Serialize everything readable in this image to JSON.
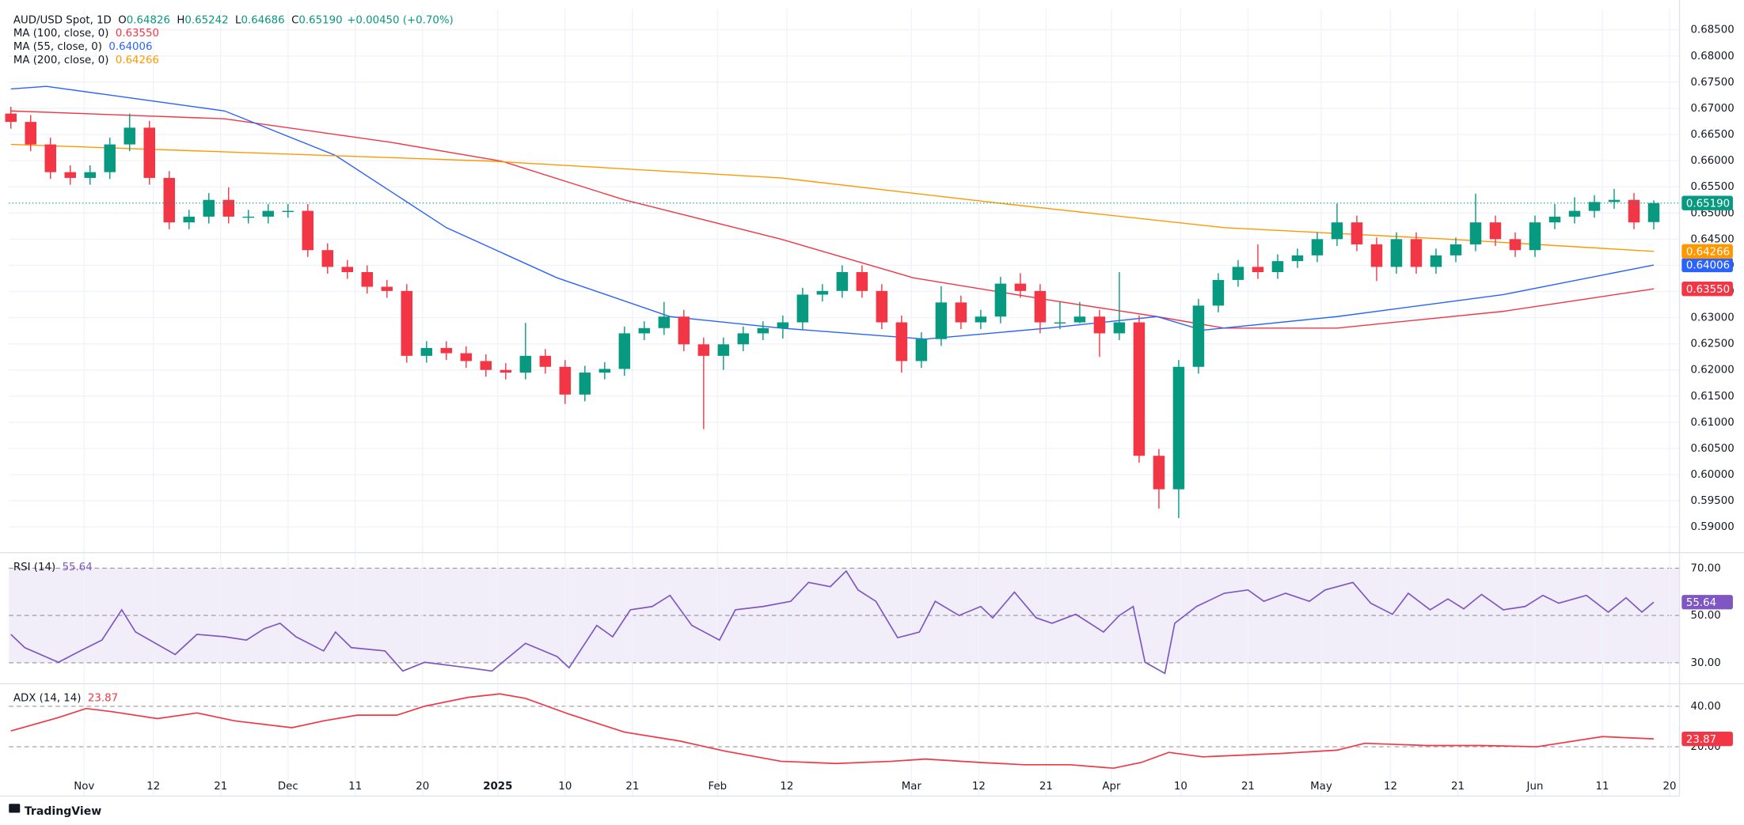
{
  "chart_data": [
    {
      "type": "candlestick",
      "title": "AUD/USD Spot, 1D",
      "header": [
        {
          "key": "O",
          "label": "0.64826"
        },
        {
          "key": "H",
          "label": "0.65242"
        },
        {
          "key": "L",
          "label": "0.64686"
        },
        {
          "key": "C",
          "label": "0.65190"
        }
      ],
      "change_label": "+0.00450 (+0.70%)",
      "up_color": "#089981",
      "down_color": "#f23645",
      "xlim": [
        -0.1,
        84.3
      ],
      "ylim": [
        0.5851,
        0.689
      ],
      "yticks": [
        {
          "value": 0.59,
          "label": "0.59000"
        },
        {
          "value": 0.595,
          "label": "0.59500"
        },
        {
          "value": 0.6,
          "label": "0.60000"
        },
        {
          "value": 0.605,
          "label": "0.60500"
        },
        {
          "value": 0.61,
          "label": "0.61000"
        },
        {
          "value": 0.615,
          "label": "0.61500"
        },
        {
          "value": 0.62,
          "label": "0.62000"
        },
        {
          "value": 0.625,
          "label": "0.62500"
        },
        {
          "value": 0.63,
          "label": "0.63000"
        },
        {
          "value": 0.635,
          "label": "0.63500"
        },
        {
          "value": 0.64,
          "label": "0.64000"
        },
        {
          "value": 0.645,
          "label": "0.64500"
        },
        {
          "value": 0.65,
          "label": "0.65000"
        },
        {
          "value": 0.655,
          "label": "0.65500"
        },
        {
          "value": 0.66,
          "label": "0.66000"
        },
        {
          "value": 0.665,
          "label": "0.66500"
        },
        {
          "value": 0.67,
          "label": "0.67000"
        },
        {
          "value": 0.675,
          "label": "0.67500"
        },
        {
          "value": 0.68,
          "label": "0.68000"
        },
        {
          "value": 0.685,
          "label": "0.68500"
        }
      ],
      "last_label": "0.65190",
      "candles": [
        [
          0.669,
          0.6703,
          0.6661,
          0.6674
        ],
        [
          0.6674,
          0.6687,
          0.6618,
          0.6631
        ],
        [
          0.6631,
          0.6644,
          0.6565,
          0.6578
        ],
        [
          0.6578,
          0.6591,
          0.6554,
          0.6567
        ],
        [
          0.6567,
          0.6591,
          0.6554,
          0.6578
        ],
        [
          0.6578,
          0.6644,
          0.6565,
          0.6631
        ],
        [
          0.6631,
          0.669,
          0.6618,
          0.6663
        ],
        [
          0.6663,
          0.6676,
          0.6554,
          0.6567
        ],
        [
          0.6567,
          0.658,
          0.6469,
          0.6482
        ],
        [
          0.6482,
          0.6506,
          0.6469,
          0.6493
        ],
        [
          0.6493,
          0.6538,
          0.648,
          0.6525
        ],
        [
          0.6525,
          0.6549,
          0.648,
          0.6493
        ],
        [
          0.6493,
          0.6506,
          0.648,
          0.6493
        ],
        [
          0.6493,
          0.6517,
          0.648,
          0.6504
        ],
        [
          0.6504,
          0.6517,
          0.6491,
          0.6504
        ],
        [
          0.6504,
          0.6517,
          0.6416,
          0.6429
        ],
        [
          0.6429,
          0.6442,
          0.6384,
          0.6397
        ],
        [
          0.6397,
          0.641,
          0.6374,
          0.6387
        ],
        [
          0.6387,
          0.64,
          0.6346,
          0.6359
        ],
        [
          0.6359,
          0.6372,
          0.6338,
          0.6351
        ],
        [
          0.6351,
          0.6364,
          0.6214,
          0.6227
        ],
        [
          0.6227,
          0.6255,
          0.6214,
          0.6242
        ],
        [
          0.6242,
          0.6255,
          0.6219,
          0.6232
        ],
        [
          0.6232,
          0.6245,
          0.6204,
          0.6217
        ],
        [
          0.6217,
          0.623,
          0.6187,
          0.62
        ],
        [
          0.62,
          0.6213,
          0.6182,
          0.6195
        ],
        [
          0.6195,
          0.629,
          0.6182,
          0.6227
        ],
        [
          0.6227,
          0.624,
          0.6193,
          0.6206
        ],
        [
          0.6206,
          0.6219,
          0.6135,
          0.6153
        ],
        [
          0.6153,
          0.6208,
          0.614,
          0.6195
        ],
        [
          0.6195,
          0.6215,
          0.6182,
          0.6202
        ],
        [
          0.6202,
          0.6283,
          0.6189,
          0.627
        ],
        [
          0.627,
          0.6293,
          0.6257,
          0.628
        ],
        [
          0.628,
          0.633,
          0.6267,
          0.6302
        ],
        [
          0.6302,
          0.6315,
          0.6236,
          0.6249
        ],
        [
          0.6249,
          0.6262,
          0.6087,
          0.6227
        ],
        [
          0.6227,
          0.6262,
          0.62,
          0.6249
        ],
        [
          0.6249,
          0.6283,
          0.6236,
          0.627
        ],
        [
          0.627,
          0.6293,
          0.6257,
          0.628
        ],
        [
          0.628,
          0.6304,
          0.626,
          0.6291
        ],
        [
          0.6291,
          0.6357,
          0.6278,
          0.6344
        ],
        [
          0.6344,
          0.6364,
          0.6331,
          0.6351
        ],
        [
          0.6351,
          0.64,
          0.6338,
          0.6387
        ],
        [
          0.6387,
          0.64,
          0.6338,
          0.6351
        ],
        [
          0.6351,
          0.6364,
          0.6278,
          0.6291
        ],
        [
          0.6291,
          0.6304,
          0.6195,
          0.6217
        ],
        [
          0.6217,
          0.6272,
          0.6204,
          0.6259
        ],
        [
          0.6259,
          0.636,
          0.6246,
          0.6329
        ],
        [
          0.6329,
          0.6342,
          0.6278,
          0.6291
        ],
        [
          0.6291,
          0.6315,
          0.6278,
          0.6302
        ],
        [
          0.6302,
          0.6378,
          0.6289,
          0.6365
        ],
        [
          0.6365,
          0.6385,
          0.6338,
          0.6351
        ],
        [
          0.6351,
          0.6364,
          0.627,
          0.6291
        ],
        [
          0.6291,
          0.633,
          0.6278,
          0.6291
        ],
        [
          0.6291,
          0.633,
          0.6289,
          0.6302
        ],
        [
          0.6302,
          0.6315,
          0.6225,
          0.627
        ],
        [
          0.627,
          0.6387,
          0.6257,
          0.6291
        ],
        [
          0.6291,
          0.6304,
          0.6023,
          0.6036
        ],
        [
          0.6036,
          0.6049,
          0.5935,
          0.5972
        ],
        [
          0.5972,
          0.6219,
          0.5917,
          0.6206
        ],
        [
          0.6206,
          0.6336,
          0.6193,
          0.6323
        ],
        [
          0.6323,
          0.6385,
          0.631,
          0.6372
        ],
        [
          0.6372,
          0.641,
          0.6359,
          0.6397
        ],
        [
          0.6397,
          0.644,
          0.6374,
          0.6387
        ],
        [
          0.6387,
          0.6421,
          0.6374,
          0.6408
        ],
        [
          0.6408,
          0.6432,
          0.6395,
          0.6419
        ],
        [
          0.6419,
          0.6463,
          0.6406,
          0.645
        ],
        [
          0.645,
          0.6518,
          0.6437,
          0.6482
        ],
        [
          0.6482,
          0.6495,
          0.6427,
          0.644
        ],
        [
          0.644,
          0.6453,
          0.637,
          0.6397
        ],
        [
          0.6397,
          0.6463,
          0.6384,
          0.645
        ],
        [
          0.645,
          0.6463,
          0.6384,
          0.6397
        ],
        [
          0.6397,
          0.6432,
          0.6384,
          0.6419
        ],
        [
          0.6419,
          0.6453,
          0.6406,
          0.644
        ],
        [
          0.644,
          0.6537,
          0.6427,
          0.6482
        ],
        [
          0.6482,
          0.6495,
          0.6437,
          0.645
        ],
        [
          0.645,
          0.6463,
          0.6416,
          0.6429
        ],
        [
          0.6429,
          0.6495,
          0.6416,
          0.6482
        ],
        [
          0.6482,
          0.6517,
          0.6469,
          0.6493
        ],
        [
          0.6493,
          0.653,
          0.648,
          0.6504
        ],
        [
          0.6504,
          0.6534,
          0.6491,
          0.6521
        ],
        [
          0.6521,
          0.6546,
          0.6508,
          0.6525
        ],
        [
          0.6525,
          0.6538,
          0.6469,
          0.6482
        ],
        [
          0.64826,
          0.65242,
          0.64686,
          0.6519
        ]
      ],
      "series": [
        {
          "name": "MA (100, close, 0)",
          "color": "#f23645",
          "last_label": "0.63550",
          "x": [
            0,
            10.8,
            19.2,
            24.8,
            31.0,
            38.9,
            45.6,
            52.4,
            57.9,
            61.3,
            67.0,
            75.4,
            83
          ],
          "values": [
            0.6695,
            0.668,
            0.6635,
            0.6599,
            0.6525,
            0.645,
            0.6376,
            0.6334,
            0.6302,
            0.628,
            0.628,
            0.6312,
            0.6355
          ]
        },
        {
          "name": "MA (55, close, 0)",
          "color": "#2962ff",
          "last_label": "0.64006",
          "x": [
            0,
            1.8,
            10.8,
            16.4,
            22.0,
            27.6,
            33.3,
            38.9,
            46.2,
            52.4,
            57.9,
            60.2,
            67.0,
            75.4,
            83
          ],
          "values": [
            0.6737,
            0.6742,
            0.6695,
            0.661,
            0.6472,
            0.6376,
            0.6302,
            0.628,
            0.6259,
            0.628,
            0.6302,
            0.6276,
            0.6302,
            0.6344,
            0.64006
          ]
        },
        {
          "name": "MA (200, close, 0)",
          "color": "#ff9800",
          "last_label": "0.64266",
          "x": [
            0,
            24.3,
            38.9,
            50.1,
            61.3,
            72.6,
            83
          ],
          "values": [
            0.6631,
            0.6599,
            0.6567,
            0.6518,
            0.6472,
            0.645,
            0.64266
          ]
        }
      ]
    },
    {
      "type": "line",
      "title": "RSI (14)",
      "color": "#7e57c2",
      "last_label": "55.64",
      "band": true,
      "xlim": [
        -0.1,
        84.3
      ],
      "ylim": [
        21.1,
        76.6
      ],
      "yticks": [
        {
          "value": 70,
          "label": "70.00"
        },
        {
          "value": 50,
          "label": "50.00"
        },
        {
          "value": 30,
          "label": "30.00"
        }
      ],
      "x": [
        0,
        0.7,
        2.4,
        3.5,
        4.6,
        5.6,
        6.3,
        8.3,
        9.4,
        10.8,
        11.9,
        12.8,
        13.6,
        14.4,
        15.8,
        16.4,
        17.2,
        18.9,
        19.8,
        20.9,
        23.1,
        24.3,
        26.0,
        27.6,
        28.2,
        29.6,
        30.4,
        31.3,
        32.4,
        33.3,
        34.4,
        35.8,
        36.6,
        38.0,
        39.4,
        40.3,
        41.4,
        42.2,
        42.8,
        43.7,
        44.8,
        45.9,
        46.7,
        47.9,
        49.0,
        49.6,
        50.7,
        51.8,
        52.6,
        53.8,
        55.2,
        56.0,
        56.7,
        57.3,
        58.3,
        58.8,
        59.9,
        61.3,
        62.5,
        63.3,
        64.4,
        65.6,
        66.4,
        67.8,
        68.7,
        69.8,
        70.6,
        71.7,
        72.6,
        73.4,
        74.3,
        75.4,
        76.5,
        77.4,
        78.2,
        79.6,
        80.7,
        81.6,
        82.4,
        83
      ],
      "values": [
        42,
        36.4,
        30.2,
        35,
        39.6,
        52.4,
        43,
        33.5,
        42,
        41,
        39.6,
        44.4,
        46.7,
        41,
        35,
        43,
        36.4,
        35,
        26.5,
        30.2,
        27.9,
        26.5,
        38.2,
        32.6,
        27.9,
        45.8,
        41,
        52.4,
        53.8,
        58.5,
        45.8,
        39.6,
        52.4,
        53.8,
        56,
        64,
        62.2,
        68.8,
        60.8,
        56,
        40.6,
        43,
        56,
        50,
        53.8,
        49,
        59.9,
        49,
        46.7,
        50.5,
        43,
        50,
        53.8,
        30.2,
        25.5,
        46.7,
        53.8,
        59.4,
        60.8,
        56,
        59.4,
        56,
        60.8,
        64,
        55.2,
        50.5,
        59.4,
        52.4,
        57,
        52.8,
        58.9,
        52.4,
        53.8,
        58.5,
        55.2,
        58.5,
        51.4,
        57.5,
        51.4,
        55.64
      ]
    },
    {
      "type": "line",
      "title": "ADX (14, 14)",
      "color": "#f23645",
      "last_label": "23.87",
      "xlim": [
        -0.1,
        84.3
      ],
      "ylim": [
        -4.4,
        51.1
      ],
      "yticks": [
        {
          "value": 40,
          "label": "40.00"
        },
        {
          "value": 20,
          "label": "20.00"
        }
      ],
      "xticks": [
        {
          "value": 3.7,
          "label": "Nov"
        },
        {
          "value": 7.2,
          "label": "12"
        },
        {
          "value": 10.6,
          "label": "21"
        },
        {
          "value": 14.0,
          "label": "Dec"
        },
        {
          "value": 17.4,
          "label": "11"
        },
        {
          "value": 20.8,
          "label": "20"
        },
        {
          "value": 24.6,
          "label": "2025"
        },
        {
          "value": 28.0,
          "label": "10"
        },
        {
          "value": 31.4,
          "label": "21"
        },
        {
          "value": 35.7,
          "label": "Feb"
        },
        {
          "value": 39.2,
          "label": "12"
        },
        {
          "value": 45.5,
          "label": "Mar"
        },
        {
          "value": 48.9,
          "label": "12"
        },
        {
          "value": 52.3,
          "label": "21"
        },
        {
          "value": 55.6,
          "label": "Apr"
        },
        {
          "value": 59.1,
          "label": "10"
        },
        {
          "value": 62.5,
          "label": "21"
        },
        {
          "value": 66.2,
          "label": "May"
        },
        {
          "value": 69.7,
          "label": "12"
        },
        {
          "value": 73.1,
          "label": "21"
        },
        {
          "value": 77.0,
          "label": "Jun"
        },
        {
          "value": 80.4,
          "label": "11"
        },
        {
          "value": 83.8,
          "label": "20"
        }
      ],
      "x": [
        0,
        2.4,
        3.8,
        5.2,
        7.4,
        9.4,
        11.3,
        14.2,
        15.8,
        17.5,
        19.5,
        20.9,
        23.1,
        24.7,
        26.0,
        28.2,
        31.0,
        33.8,
        36.1,
        38.9,
        41.7,
        44.5,
        46.2,
        49.0,
        51.2,
        53.5,
        55.7,
        57.1,
        58.5,
        60.2,
        64.2,
        67.0,
        68.4,
        71.5,
        74.3,
        77.1,
        80.4,
        83
      ],
      "values": [
        27.8,
        34.4,
        38.9,
        37.2,
        33.9,
        36.7,
        32.8,
        29.4,
        32.8,
        35.6,
        35.6,
        40,
        44.4,
        46.1,
        43.9,
        36.1,
        27.2,
        22.8,
        17.8,
        12.8,
        11.7,
        12.8,
        13.9,
        12.2,
        11.1,
        11.1,
        9.4,
        12.2,
        17.2,
        15,
        16.7,
        18.3,
        21.7,
        20.6,
        20.6,
        20,
        25,
        23.87
      ]
    }
  ],
  "footer": "TradingView"
}
